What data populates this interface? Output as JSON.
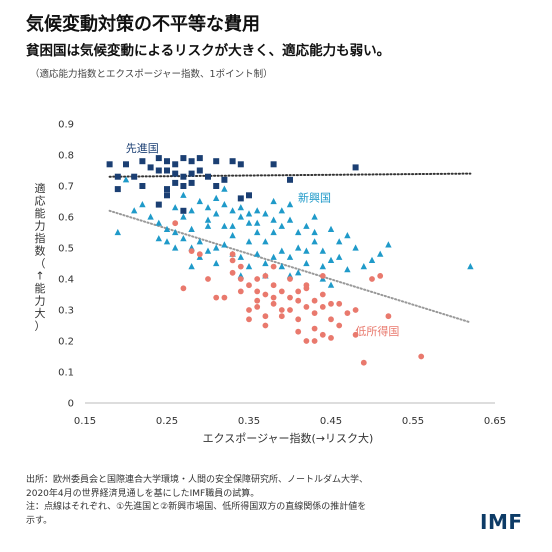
{
  "header": {
    "title": "気候変動対策の不平等な費用",
    "subtitle": "貧困国は気候変動によるリスクが大きく、適応能力も弱い。",
    "note": "（適応能力指数とエクスポージャー指数、1ポイント制）"
  },
  "source": {
    "line1": "出所：欧州委員会と国際連合大学環境・人間の安全保障研究所、ノートルダム大学、",
    "line2": "2020年4月の世界経済見通しを基にしたIMF職員の試算。",
    "line3": "注：点線はそれぞれ、①先進国と②新興市場国、低所得国双方の直線関係の推計値を",
    "line4": "示す。"
  },
  "logo": "IMF",
  "colors": {
    "advanced": "#1b3f73",
    "emerging": "#1f9ac9",
    "low_income": "#e9796d",
    "trend": "#333333",
    "trend_em": "#999999"
  },
  "chart_data": {
    "type": "scatter",
    "xlabel": "エクスポージャー指数(→リスク大)",
    "ylabel": "適応能力指数（↑能力大）",
    "xlim": [
      0.15,
      0.65
    ],
    "ylim": [
      0,
      0.9
    ],
    "xticks": [
      "0.15",
      "0.25",
      "0.35",
      "0.45",
      "0.55",
      "0.65"
    ],
    "yticks": [
      "0",
      "0.1",
      "0.2",
      "0.3",
      "0.4",
      "0.5",
      "0.6",
      "0.7",
      "0.8",
      "0.9"
    ],
    "series": [
      {
        "name": "先進国",
        "marker": "square",
        "points": [
          [
            0.18,
            0.77
          ],
          [
            0.2,
            0.77
          ],
          [
            0.22,
            0.78
          ],
          [
            0.24,
            0.79
          ],
          [
            0.25,
            0.78
          ],
          [
            0.25,
            0.75
          ],
          [
            0.26,
            0.77
          ],
          [
            0.27,
            0.79
          ],
          [
            0.28,
            0.78
          ],
          [
            0.29,
            0.79
          ],
          [
            0.31,
            0.78
          ],
          [
            0.33,
            0.78
          ],
          [
            0.34,
            0.77
          ],
          [
            0.38,
            0.77
          ],
          [
            0.48,
            0.76
          ],
          [
            0.19,
            0.73
          ],
          [
            0.21,
            0.73
          ],
          [
            0.23,
            0.76
          ],
          [
            0.24,
            0.75
          ],
          [
            0.26,
            0.74
          ],
          [
            0.27,
            0.73
          ],
          [
            0.28,
            0.74
          ],
          [
            0.29,
            0.75
          ],
          [
            0.3,
            0.73
          ],
          [
            0.32,
            0.72
          ],
          [
            0.4,
            0.72
          ],
          [
            0.19,
            0.69
          ],
          [
            0.22,
            0.7
          ],
          [
            0.25,
            0.69
          ],
          [
            0.26,
            0.71
          ],
          [
            0.27,
            0.7
          ],
          [
            0.28,
            0.71
          ],
          [
            0.31,
            0.7
          ],
          [
            0.24,
            0.64
          ],
          [
            0.25,
            0.67
          ],
          [
            0.34,
            0.66
          ],
          [
            0.35,
            0.67
          ],
          [
            0.27,
            0.62
          ]
        ]
      },
      {
        "name": "新興国",
        "marker": "triangle",
        "points": [
          [
            0.2,
            0.72
          ],
          [
            0.22,
            0.64
          ],
          [
            0.19,
            0.55
          ],
          [
            0.24,
            0.53
          ],
          [
            0.24,
            0.58
          ],
          [
            0.25,
            0.52
          ],
          [
            0.26,
            0.63
          ],
          [
            0.27,
            0.6
          ],
          [
            0.28,
            0.56
          ],
          [
            0.29,
            0.52
          ],
          [
            0.3,
            0.57
          ],
          [
            0.31,
            0.61
          ],
          [
            0.32,
            0.57
          ],
          [
            0.33,
            0.54
          ],
          [
            0.34,
            0.6
          ],
          [
            0.35,
            0.58
          ],
          [
            0.36,
            0.55
          ],
          [
            0.37,
            0.61
          ],
          [
            0.38,
            0.55
          ],
          [
            0.39,
            0.57
          ],
          [
            0.4,
            0.59
          ],
          [
            0.41,
            0.55
          ],
          [
            0.42,
            0.57
          ],
          [
            0.43,
            0.52
          ],
          [
            0.44,
            0.49
          ],
          [
            0.45,
            0.46
          ],
          [
            0.46,
            0.47
          ],
          [
            0.47,
            0.54
          ],
          [
            0.48,
            0.5
          ],
          [
            0.49,
            0.44
          ],
          [
            0.5,
            0.46
          ],
          [
            0.51,
            0.48
          ],
          [
            0.52,
            0.51
          ],
          [
            0.62,
            0.44
          ],
          [
            0.23,
            0.6
          ],
          [
            0.26,
            0.55
          ],
          [
            0.27,
            0.67
          ],
          [
            0.28,
            0.62
          ],
          [
            0.29,
            0.65
          ],
          [
            0.3,
            0.63
          ],
          [
            0.31,
            0.66
          ],
          [
            0.32,
            0.64
          ],
          [
            0.33,
            0.62
          ],
          [
            0.34,
            0.63
          ],
          [
            0.35,
            0.61
          ],
          [
            0.36,
            0.58
          ],
          [
            0.37,
            0.52
          ],
          [
            0.38,
            0.59
          ],
          [
            0.39,
            0.62
          ],
          [
            0.4,
            0.64
          ],
          [
            0.41,
            0.5
          ],
          [
            0.42,
            0.49
          ],
          [
            0.43,
            0.55
          ],
          [
            0.46,
            0.52
          ],
          [
            0.26,
            0.5
          ],
          [
            0.27,
            0.53
          ],
          [
            0.28,
            0.5
          ],
          [
            0.29,
            0.47
          ],
          [
            0.3,
            0.49
          ],
          [
            0.31,
            0.5
          ],
          [
            0.32,
            0.51
          ],
          [
            0.33,
            0.48
          ],
          [
            0.34,
            0.47
          ],
          [
            0.35,
            0.52
          ],
          [
            0.36,
            0.48
          ],
          [
            0.37,
            0.45
          ],
          [
            0.38,
            0.47
          ],
          [
            0.39,
            0.44
          ],
          [
            0.4,
            0.47
          ],
          [
            0.42,
            0.45
          ],
          [
            0.44,
            0.44
          ],
          [
            0.47,
            0.43
          ],
          [
            0.25,
            0.56
          ],
          [
            0.31,
            0.45
          ],
          [
            0.35,
            0.44
          ],
          [
            0.39,
            0.49
          ],
          [
            0.41,
            0.42
          ],
          [
            0.3,
            0.59
          ],
          [
            0.33,
            0.57
          ],
          [
            0.36,
            0.62
          ],
          [
            0.38,
            0.65
          ],
          [
            0.43,
            0.6
          ],
          [
            0.45,
            0.56
          ],
          [
            0.21,
            0.62
          ],
          [
            0.32,
            0.69
          ],
          [
            0.28,
            0.44
          ],
          [
            0.37,
            0.41
          ],
          [
            0.34,
            0.41
          ],
          [
            0.4,
            0.41
          ],
          [
            0.44,
            0.4
          ],
          [
            0.45,
            0.38
          ]
        ]
      },
      {
        "name": "低所得国",
        "marker": "circle",
        "points": [
          [
            0.26,
            0.58
          ],
          [
            0.28,
            0.49
          ],
          [
            0.27,
            0.37
          ],
          [
            0.29,
            0.48
          ],
          [
            0.3,
            0.4
          ],
          [
            0.31,
            0.34
          ],
          [
            0.32,
            0.34
          ],
          [
            0.33,
            0.46
          ],
          [
            0.33,
            0.42
          ],
          [
            0.34,
            0.36
          ],
          [
            0.35,
            0.38
          ],
          [
            0.35,
            0.3
          ],
          [
            0.36,
            0.4
          ],
          [
            0.36,
            0.33
          ],
          [
            0.37,
            0.35
          ],
          [
            0.37,
            0.28
          ],
          [
            0.37,
            0.41
          ],
          [
            0.38,
            0.38
          ],
          [
            0.38,
            0.32
          ],
          [
            0.39,
            0.36
          ],
          [
            0.39,
            0.3
          ],
          [
            0.4,
            0.34
          ],
          [
            0.4,
            0.4
          ],
          [
            0.41,
            0.33
          ],
          [
            0.41,
            0.27
          ],
          [
            0.42,
            0.31
          ],
          [
            0.42,
            0.37
          ],
          [
            0.43,
            0.33
          ],
          [
            0.43,
            0.24
          ],
          [
            0.43,
            0.2
          ],
          [
            0.44,
            0.35
          ],
          [
            0.44,
            0.31
          ],
          [
            0.44,
            0.22
          ],
          [
            0.45,
            0.27
          ],
          [
            0.45,
            0.32
          ],
          [
            0.46,
            0.32
          ],
          [
            0.46,
            0.25
          ],
          [
            0.47,
            0.29
          ],
          [
            0.48,
            0.3
          ],
          [
            0.48,
            0.22
          ],
          [
            0.49,
            0.13
          ],
          [
            0.5,
            0.4
          ],
          [
            0.51,
            0.41
          ],
          [
            0.52,
            0.28
          ],
          [
            0.56,
            0.15
          ],
          [
            0.38,
            0.44
          ],
          [
            0.36,
            0.36
          ],
          [
            0.34,
            0.4
          ],
          [
            0.39,
            0.28
          ],
          [
            0.42,
            0.38
          ],
          [
            0.35,
            0.27
          ],
          [
            0.37,
            0.25
          ],
          [
            0.44,
            0.41
          ],
          [
            0.4,
            0.3
          ],
          [
            0.41,
            0.23
          ],
          [
            0.36,
            0.31
          ],
          [
            0.43,
            0.29
          ],
          [
            0.45,
            0.21
          ],
          [
            0.38,
            0.34
          ],
          [
            0.41,
            0.36
          ],
          [
            0.33,
            0.48
          ],
          [
            0.34,
            0.44
          ],
          [
            0.42,
            0.2
          ]
        ]
      }
    ],
    "trendlines": [
      {
        "from": [
          0.18,
          0.73
        ],
        "to": [
          0.62,
          0.74
        ],
        "style": "dotted",
        "color": "#333333"
      },
      {
        "from": [
          0.18,
          0.62
        ],
        "to": [
          0.62,
          0.26
        ],
        "style": "dotted",
        "color": "#999999"
      }
    ],
    "annotations": [
      {
        "text": "先進国",
        "x": 0.19,
        "y": 0.81,
        "color": "#1b3f73"
      },
      {
        "text": "新興国",
        "x": 0.4,
        "y": 0.65,
        "color": "#1f9ac9"
      },
      {
        "text": "低所得国",
        "x": 0.47,
        "y": 0.22,
        "color": "#e9796d"
      }
    ],
    "grid": false
  }
}
